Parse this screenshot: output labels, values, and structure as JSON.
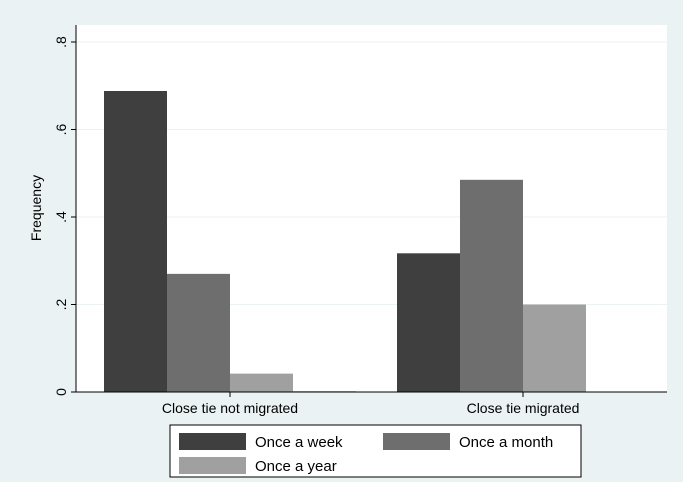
{
  "chart_data": {
    "type": "bar",
    "title": "",
    "xlabel": "",
    "ylabel": "Frequency",
    "ylim": [
      0,
      0.8
    ],
    "yticks": [
      {
        "value": 0,
        "label": "0"
      },
      {
        "value": 0.2,
        "label": ".2"
      },
      {
        "value": 0.4,
        "label": ".4"
      },
      {
        "value": 0.6,
        "label": ".6"
      },
      {
        "value": 0.8,
        "label": ".8"
      }
    ],
    "grid": true,
    "legend_position": "bottom",
    "categories": [
      "Close tie not migrated",
      "Close tie migrated"
    ],
    "series": [
      {
        "name": "Once a week",
        "color": "#3f3f3f",
        "values": [
          0.688,
          0.317
        ]
      },
      {
        "name": "Once a month",
        "color": "#6e6e6e",
        "values": [
          0.27,
          0.485
        ]
      },
      {
        "name": "Once a year",
        "color": "#a0a0a0",
        "values": [
          0.042,
          0.2
        ]
      }
    ],
    "extra_values": [
      0.002,
      0
    ]
  }
}
